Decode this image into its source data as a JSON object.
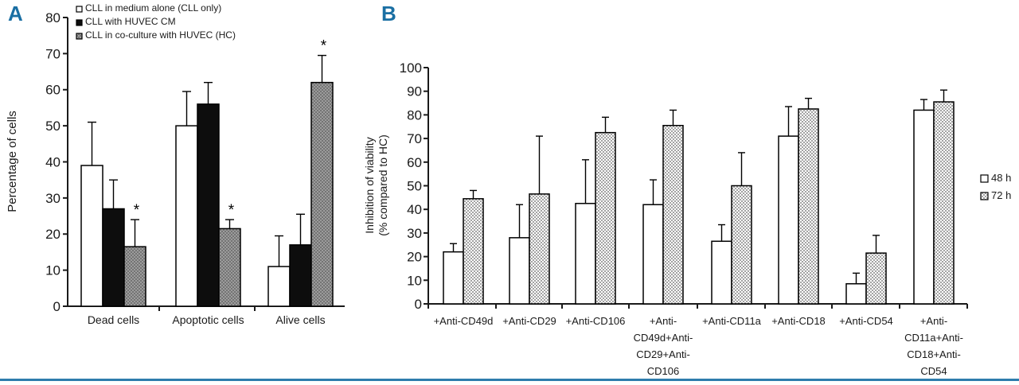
{
  "figure": {
    "accent_color": "#1a6fa3",
    "rule_color": "#2e7dad",
    "panels": [
      {
        "label": "A"
      },
      {
        "label": "B"
      }
    ]
  },
  "chart_data": [
    {
      "panel": "A",
      "type": "bar",
      "title": "",
      "ylabel": "Percentage of cells",
      "ylim": [
        0,
        80
      ],
      "ytick_step": 10,
      "yticks": [
        0,
        10,
        20,
        30,
        40,
        50,
        60,
        70,
        80
      ],
      "grid": false,
      "legend_position": "top-left",
      "categories": [
        "Dead cells",
        "Apoptotic cells",
        "Alive cells"
      ],
      "series": [
        {
          "name": "CLL in medium alone (CLL only)",
          "style": "white",
          "values": [
            39,
            50,
            11
          ],
          "errors": [
            12,
            9.5,
            8.5
          ]
        },
        {
          "name": "CLL with HUVEC CM",
          "style": "black",
          "values": [
            27,
            56,
            17
          ],
          "errors": [
            8,
            6,
            8.5
          ]
        },
        {
          "name": "CLL in co-culture with HUVEC (HC)",
          "style": "gray-check",
          "values": [
            16.5,
            21.5,
            62
          ],
          "errors": [
            7.5,
            2.5,
            7.5
          ],
          "significance": [
            "*",
            "*",
            "*"
          ]
        }
      ]
    },
    {
      "panel": "B",
      "type": "bar",
      "title": "",
      "ylabel_lines": [
        "Inhibition of viability",
        "(% compared to HC)"
      ],
      "ylim": [
        0,
        100
      ],
      "ytick_step": 10,
      "yticks": [
        0,
        10,
        20,
        30,
        40,
        50,
        60,
        70,
        80,
        90,
        100
      ],
      "grid": false,
      "legend_position": "right",
      "categories": [
        "+Anti-CD49d",
        "+Anti-CD29",
        "+Anti-CD106",
        "+Anti-CD49d+Anti-CD29+Anti-CD106",
        "+Anti-CD11a",
        "+Anti-CD18",
        "+Anti-CD54",
        "+Anti-CD11a+Anti-CD18+Anti-CD54"
      ],
      "category_label_lines": [
        [
          "+Anti-CD49d"
        ],
        [
          "+Anti-CD29"
        ],
        [
          "+Anti-CD106"
        ],
        [
          "+Anti-",
          "CD49d+Anti-",
          "CD29+Anti-",
          "CD106"
        ],
        [
          "+Anti-CD11a"
        ],
        [
          "+Anti-CD18"
        ],
        [
          "+Anti-CD54"
        ],
        [
          "+Anti-",
          "CD11a+Anti-",
          "CD18+Anti-",
          "CD54"
        ]
      ],
      "series": [
        {
          "name": "48 h",
          "style": "white",
          "values": [
            22,
            28,
            42.5,
            42,
            26.5,
            71,
            8.5,
            82
          ],
          "errors": [
            3.5,
            14,
            18.5,
            10.5,
            7,
            12.5,
            4.5,
            4.5
          ]
        },
        {
          "name": "72 h",
          "style": "light-check",
          "values": [
            44.5,
            46.5,
            72.5,
            75.5,
            50,
            82.5,
            21.5,
            85.5
          ],
          "errors": [
            3.5,
            24.5,
            6.5,
            6.5,
            14,
            4.5,
            7.5,
            5
          ]
        }
      ]
    }
  ]
}
